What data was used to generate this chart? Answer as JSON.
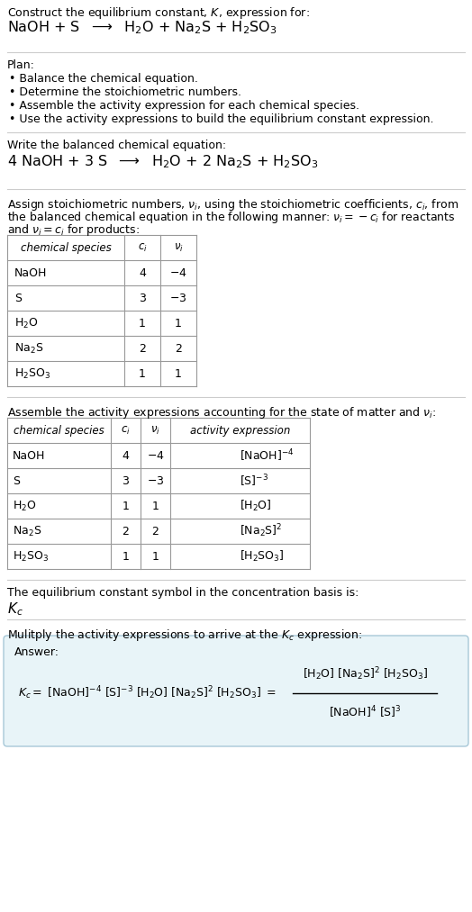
{
  "bg_color": "#ffffff",
  "text_color": "#000000",
  "light_blue_bg": "#e8f4f8",
  "light_blue_border": "#a8c8d8",
  "section1_title": "Construct the equilibrium constant, $K$, expression for:",
  "section1_equation": "NaOH + S  $\\longrightarrow$  H$_2$O + Na$_2$S + H$_2$SO$_3$",
  "section2_title": "Plan:",
  "section2_bullets": [
    "• Balance the chemical equation.",
    "• Determine the stoichiometric numbers.",
    "• Assemble the activity expression for each chemical species.",
    "• Use the activity expressions to build the equilibrium constant expression."
  ],
  "section3_title": "Write the balanced chemical equation:",
  "section3_equation": "4 NaOH + 3 S  $\\longrightarrow$  H$_2$O + 2 Na$_2$S + H$_2$SO$_3$",
  "section4_line1": "Assign stoichiometric numbers, $\\nu_i$, using the stoichiometric coefficients, $c_i$, from",
  "section4_line2": "the balanced chemical equation in the following manner: $\\nu_i = -c_i$ for reactants",
  "section4_line3": "and $\\nu_i = c_i$ for products:",
  "table1_headers": [
    "chemical species",
    "$c_i$",
    "$\\nu_i$"
  ],
  "table1_rows": [
    [
      "NaOH",
      "4",
      "$-4$"
    ],
    [
      "S",
      "3",
      "$-3$"
    ],
    [
      "H$_2$O",
      "1",
      "1"
    ],
    [
      "Na$_2$S",
      "2",
      "2"
    ],
    [
      "H$_2$SO$_3$",
      "1",
      "1"
    ]
  ],
  "section5_intro": "Assemble the activity expressions accounting for the state of matter and $\\nu_i$:",
  "table2_headers": [
    "chemical species",
    "$c_i$",
    "$\\nu_i$",
    "activity expression"
  ],
  "table2_rows": [
    [
      "NaOH",
      "4",
      "$-4$",
      "[NaOH]$^{-4}$"
    ],
    [
      "S",
      "3",
      "$-3$",
      "[S]$^{-3}$"
    ],
    [
      "H$_2$O",
      "1",
      "1",
      "[H$_2$O]"
    ],
    [
      "Na$_2$S",
      "2",
      "2",
      "[Na$_2$S]$^2$"
    ],
    [
      "H$_2$SO$_3$",
      "1",
      "1",
      "[H$_2$SO$_3$]"
    ]
  ],
  "section6_text": "The equilibrium constant symbol in the concentration basis is:",
  "section6_symbol": "$K_c$",
  "section7_text": "Mulitply the activity expressions to arrive at the $K_c$ expression:",
  "answer_label": "Answer:"
}
